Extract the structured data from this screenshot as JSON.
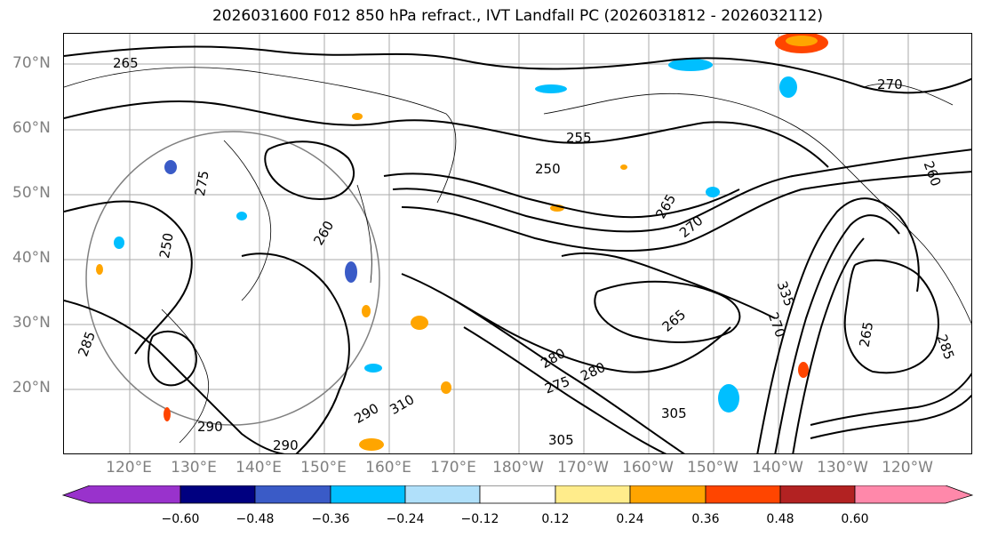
{
  "title": "2026031600 F012 850 hPa refract., IVT Landfall PC (2026031812 - 2026032112)",
  "lat_labels": [
    "70°N",
    "60°N",
    "50°N",
    "40°N",
    "30°N",
    "20°N"
  ],
  "lon_labels": [
    "120°E",
    "130°E",
    "140°E",
    "150°E",
    "160°E",
    "170°E",
    "180°W",
    "170°W",
    "160°W",
    "150°W",
    "140°W",
    "130°W",
    "120°W"
  ],
  "contour_labels": [
    "265",
    "255",
    "250",
    "265",
    "270",
    "270",
    "260",
    "275",
    "250",
    "260",
    "285",
    "280",
    "275",
    "280",
    "305",
    "290",
    "290",
    "290",
    "310",
    "305",
    "335",
    "270",
    "265",
    "285",
    "265"
  ],
  "colorbar": {
    "ticks": [
      "−0.60",
      "−0.48",
      "−0.36",
      "−0.24",
      "−0.12",
      "0.12",
      "0.24",
      "0.36",
      "0.48",
      "0.60"
    ],
    "colors": [
      "#9932cc",
      "#000080",
      "#3a5bc7",
      "#00bfff",
      "#b0e0fa",
      "#ffffff",
      "#ffec8b",
      "#ffa500",
      "#ff4500",
      "#b22222",
      "#ff88aa"
    ]
  }
}
